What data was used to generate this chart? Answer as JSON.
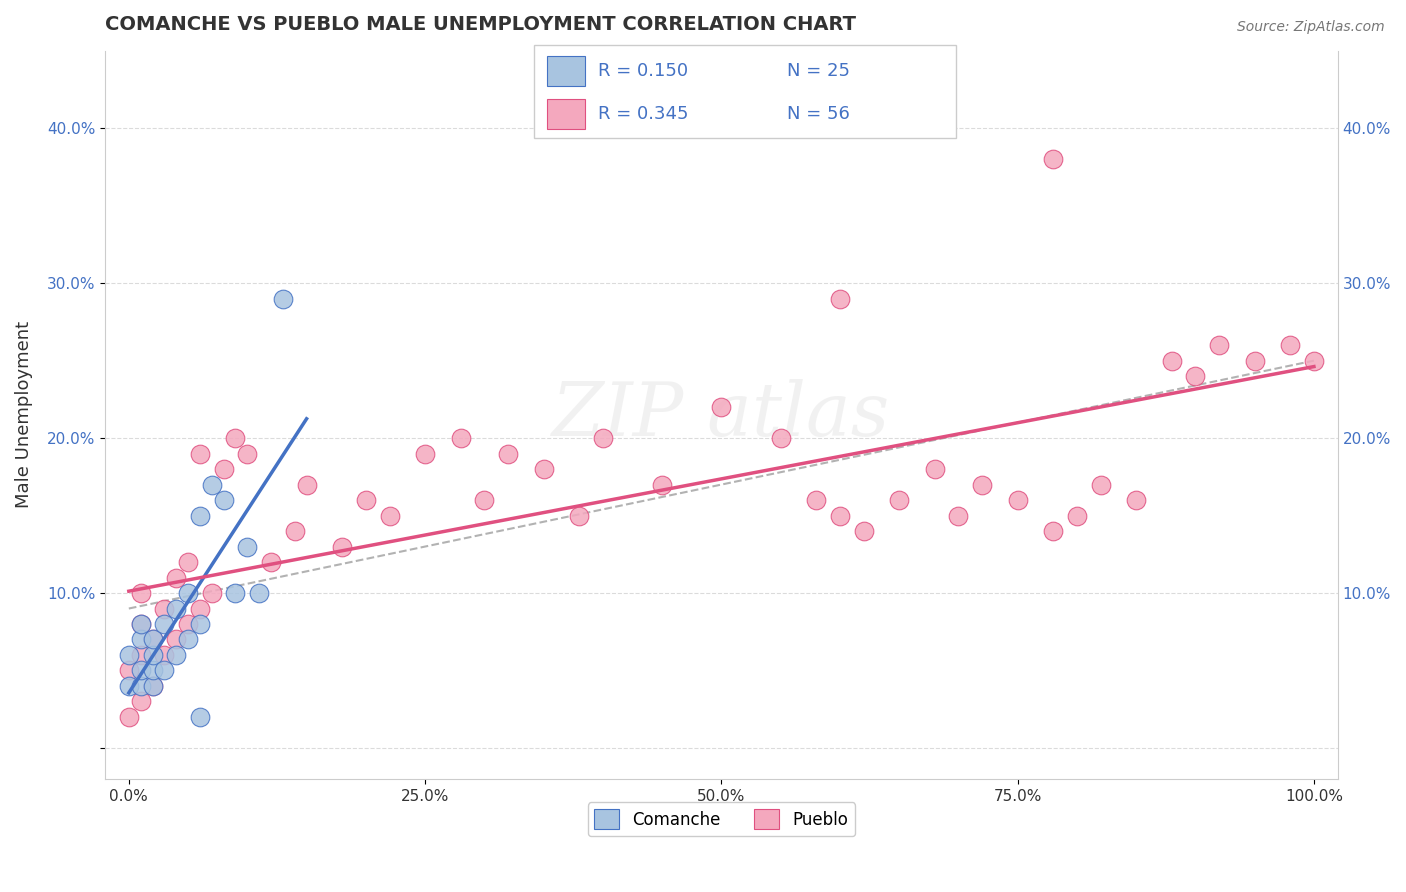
{
  "title": "COMANCHE VS PUEBLO MALE UNEMPLOYMENT CORRELATION CHART",
  "source": "Source: ZipAtlas.com",
  "ylabel": "Male Unemployment",
  "xlim": [
    -0.02,
    1.02
  ],
  "ylim": [
    -0.02,
    0.45
  ],
  "xticks": [
    0.0,
    0.25,
    0.5,
    0.75,
    1.0
  ],
  "xticklabels": [
    "0.0%",
    "25.0%",
    "50.0%",
    "75.0%",
    "100.0%"
  ],
  "yticks": [
    0.0,
    0.1,
    0.2,
    0.3,
    0.4
  ],
  "yticklabels": [
    "",
    "10.0%",
    "20.0%",
    "30.0%",
    "40.0%"
  ],
  "comanche_color": "#a8c4e0",
  "pueblo_color": "#f4a8be",
  "trend_color_comanche": "#4472c4",
  "trend_color_pueblo": "#e05080",
  "comanche_x": [
    0.0,
    0.0,
    0.01,
    0.01,
    0.01,
    0.01,
    0.02,
    0.02,
    0.02,
    0.02,
    0.03,
    0.03,
    0.04,
    0.04,
    0.05,
    0.05,
    0.06,
    0.06,
    0.07,
    0.08,
    0.09,
    0.1,
    0.11,
    0.13,
    0.06
  ],
  "comanche_y": [
    0.04,
    0.06,
    0.04,
    0.05,
    0.07,
    0.08,
    0.04,
    0.05,
    0.06,
    0.07,
    0.05,
    0.08,
    0.06,
    0.09,
    0.07,
    0.1,
    0.08,
    0.15,
    0.17,
    0.16,
    0.1,
    0.13,
    0.1,
    0.29,
    0.02
  ],
  "pueblo_x": [
    0.0,
    0.0,
    0.01,
    0.01,
    0.01,
    0.01,
    0.02,
    0.02,
    0.03,
    0.03,
    0.04,
    0.04,
    0.05,
    0.05,
    0.06,
    0.06,
    0.07,
    0.08,
    0.09,
    0.1,
    0.12,
    0.14,
    0.15,
    0.18,
    0.2,
    0.22,
    0.25,
    0.28,
    0.3,
    0.32,
    0.35,
    0.38,
    0.4,
    0.45,
    0.5,
    0.55,
    0.58,
    0.6,
    0.62,
    0.65,
    0.68,
    0.7,
    0.72,
    0.75,
    0.78,
    0.8,
    0.82,
    0.85,
    0.88,
    0.9,
    0.92,
    0.95,
    0.98,
    1.0,
    0.78,
    0.6
  ],
  "pueblo_y": [
    0.02,
    0.05,
    0.03,
    0.06,
    0.08,
    0.1,
    0.04,
    0.07,
    0.06,
    0.09,
    0.07,
    0.11,
    0.08,
    0.12,
    0.09,
    0.19,
    0.1,
    0.18,
    0.2,
    0.19,
    0.12,
    0.14,
    0.17,
    0.13,
    0.16,
    0.15,
    0.19,
    0.2,
    0.16,
    0.19,
    0.18,
    0.15,
    0.2,
    0.17,
    0.22,
    0.2,
    0.16,
    0.15,
    0.14,
    0.16,
    0.18,
    0.15,
    0.17,
    0.16,
    0.14,
    0.15,
    0.17,
    0.16,
    0.25,
    0.24,
    0.26,
    0.25,
    0.26,
    0.25,
    0.38,
    0.29
  ],
  "legend_r1": "R = 0.150",
  "legend_n1": "N = 25",
  "legend_r2": "R = 0.345",
  "legend_n2": "N = 56",
  "bottom_legend_labels": [
    "Comanche",
    "Pueblo"
  ]
}
